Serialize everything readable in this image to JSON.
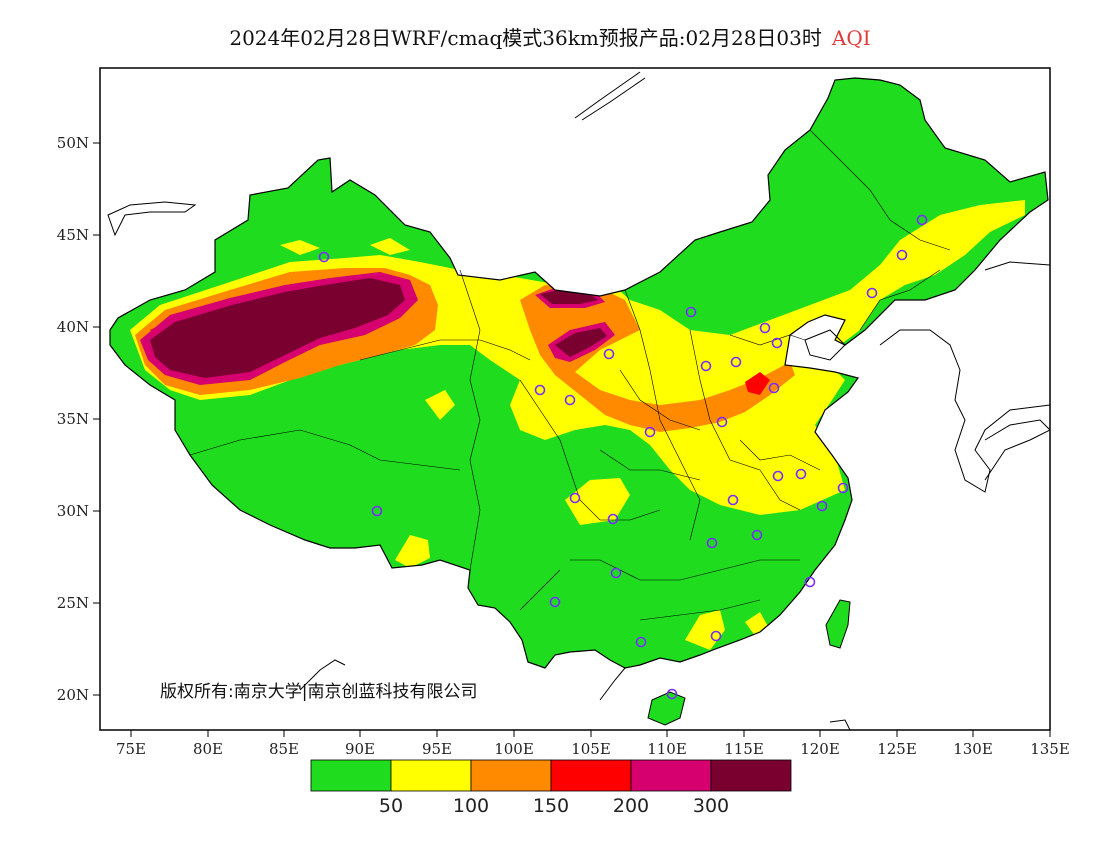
{
  "title": {
    "main": "2024年02月28日WRF/cmaq模式36km预报产品:02月28日03时",
    "variable": "AQI"
  },
  "copyright": "版权所有:南京大学|南京创蓝科技有限公司",
  "lat_ticks": [
    "50N",
    "45N",
    "40N",
    "35N",
    "30N",
    "25N",
    "20N"
  ],
  "lon_ticks": [
    "75E",
    "80E",
    "85E",
    "90E",
    "95E",
    "100E",
    "105E",
    "110E",
    "115E",
    "120E",
    "125E",
    "130E",
    "135E"
  ],
  "legend": {
    "colors": [
      "#1fdc1f",
      "#ffff00",
      "#ff8a00",
      "#ff0000",
      "#d6006e",
      "#7a0030"
    ],
    "labels": [
      "50",
      "100",
      "150",
      "200",
      "300"
    ]
  },
  "colors": {
    "ocean": "#ffffff",
    "frame": "#000000",
    "station": "#7a2cff"
  }
}
